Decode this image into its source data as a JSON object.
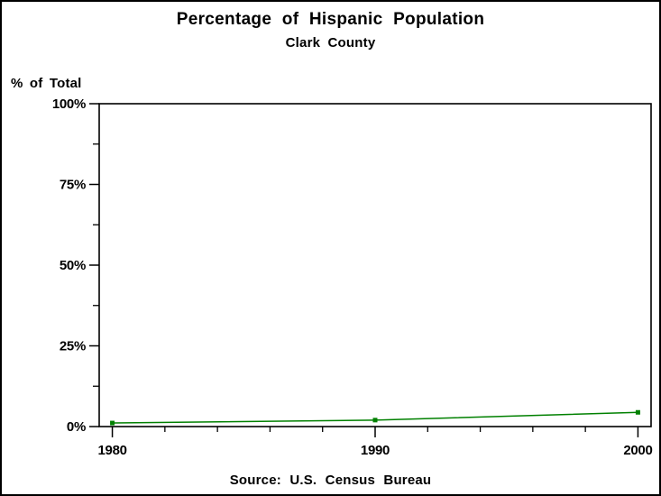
{
  "page": {
    "title": "Percentage of Hispanic Population",
    "subtitle": "Clark County",
    "footer": "Source: U.S. Census Bureau"
  },
  "chart_data": {
    "type": "line",
    "title": "Percentage of Hispanic Population",
    "subtitle": "Clark County",
    "source": "Source: U.S. Census Bureau",
    "xlabel": "",
    "ylabel": "% of Total",
    "x": [
      1980,
      1990,
      2000
    ],
    "series": [
      {
        "name": "hispanic-percentage",
        "values": [
          1.1,
          2.0,
          4.4
        ]
      }
    ],
    "xlim": [
      1979.5,
      2000.5
    ],
    "ylim": [
      0,
      100
    ],
    "xticks": [
      1980,
      1990,
      2000
    ],
    "xtick_labels": [
      "1980",
      "1990",
      "2000"
    ],
    "x_minor_step_years": 2,
    "yticks": [
      0,
      25,
      50,
      75,
      100
    ],
    "ytick_labels": [
      "0%",
      "25%",
      "50%",
      "75%",
      "100%"
    ],
    "y_minor_ticks": [
      12.5,
      37.5,
      62.5,
      87.5
    ],
    "grid": false,
    "legend": "none",
    "line_color": "#008000",
    "marker": "square",
    "axis_color": "#000000",
    "background_color": "#ffffff"
  }
}
